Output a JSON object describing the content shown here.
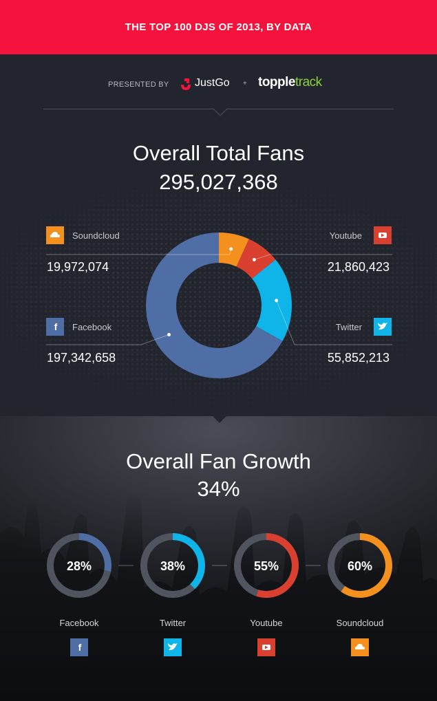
{
  "header": {
    "title": "THE TOP 100 DJS OF 2013, BY DATA"
  },
  "presented": {
    "label": "PRESENTED BY",
    "brand1": "JustGo",
    "plus": "+",
    "brand2_a": "topple",
    "brand2_b": "track"
  },
  "section_total": {
    "title": "Overall Total Fans",
    "total": "295,027,368"
  },
  "section_growth": {
    "title": "Overall Fan Growth",
    "overall": "34%"
  },
  "colors": {
    "facebook": "#4f6ea5",
    "twitter": "#0fb4e9",
    "youtube": "#d9402f",
    "soundcloud": "#f4901e",
    "banner": "#f5133d",
    "track_green": "#8bd13a"
  },
  "chart_data": [
    {
      "type": "pie",
      "title": "Overall Total Fans",
      "total": 295027368,
      "slices": [
        {
          "name": "Soundcloud",
          "value": 19972074,
          "label": "19,972,074",
          "color": "#f4901e",
          "icon": "soundcloud-icon"
        },
        {
          "name": "Youtube",
          "value": 21860423,
          "label": "21,860,423",
          "color": "#d9402f",
          "icon": "youtube-icon"
        },
        {
          "name": "Twitter",
          "value": 55852213,
          "label": "55,852,213",
          "color": "#0fb4e9",
          "icon": "twitter-icon"
        },
        {
          "name": "Facebook",
          "value": 197342658,
          "label": "197,342,658",
          "color": "#4f6ea5",
          "icon": "facebook-icon"
        }
      ]
    },
    {
      "type": "pie",
      "title": "Overall Fan Growth",
      "overall": "34%",
      "series": [
        {
          "name": "Facebook",
          "value": 28,
          "label": "28%",
          "color": "#4f6ea5",
          "icon": "facebook-icon"
        },
        {
          "name": "Twitter",
          "value": 38,
          "label": "38%",
          "color": "#0fb4e9",
          "icon": "twitter-icon"
        },
        {
          "name": "Youtube",
          "value": 55,
          "label": "55%",
          "color": "#d9402f",
          "icon": "youtube-icon"
        },
        {
          "name": "Soundcloud",
          "value": 60,
          "label": "60%",
          "color": "#f4901e",
          "icon": "soundcloud-icon"
        }
      ]
    }
  ]
}
